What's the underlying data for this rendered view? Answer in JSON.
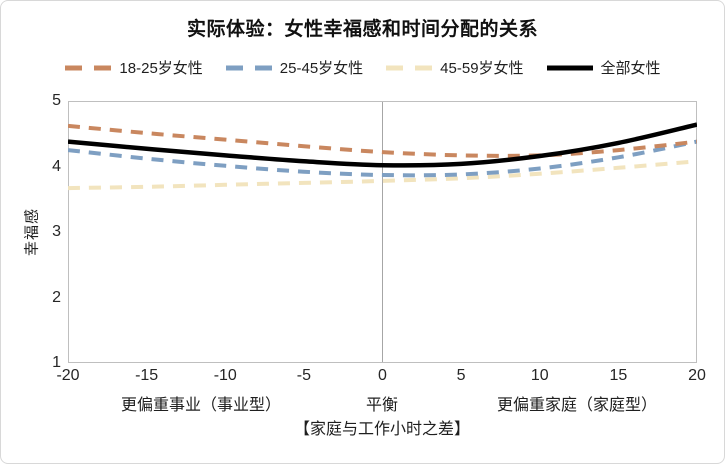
{
  "title": "实际体验：女性幸福感和时间分配的关系",
  "y_axis_title": "幸福感",
  "x_axis_title": "【家庭与工作小时之差】",
  "chart_data": {
    "type": "line",
    "title": "实际体验：女性幸福感和时间分配的关系",
    "xlabel": "【家庭与工作小时之差】",
    "ylabel": "幸福感",
    "xlim": [
      -20,
      20
    ],
    "ylim": [
      1,
      5
    ],
    "xticks": [
      -20,
      -15,
      -10,
      -5,
      0,
      5,
      10,
      15,
      20
    ],
    "yticks": [
      1,
      2,
      3,
      4,
      5
    ],
    "x": [
      -20,
      -15,
      -10,
      -5,
      0,
      5,
      10,
      15,
      20
    ],
    "series": [
      {
        "name": "18-25岁女性",
        "color": "#C9875F",
        "dash": true,
        "values": [
          4.62,
          4.51,
          4.41,
          4.31,
          4.22,
          4.17,
          4.17,
          4.25,
          4.38
        ]
      },
      {
        "name": "25-45岁女性",
        "color": "#7E9FC2",
        "dash": true,
        "values": [
          4.25,
          4.12,
          4.01,
          3.92,
          3.87,
          3.88,
          3.97,
          4.14,
          4.38
        ]
      },
      {
        "name": "45-59岁女性",
        "color": "#F2E4BE",
        "dash": true,
        "values": [
          3.67,
          3.69,
          3.72,
          3.75,
          3.78,
          3.82,
          3.89,
          3.98,
          4.08
        ]
      },
      {
        "name": "全部女性",
        "color": "#000000",
        "dash": false,
        "values": [
          4.38,
          4.27,
          4.17,
          4.08,
          4.02,
          4.04,
          4.16,
          4.36,
          4.64
        ]
      }
    ],
    "draw_order": [
      2,
      1,
      0,
      3
    ],
    "legend_position": "top",
    "grid": "single vertical gridline at x=0",
    "x_zone_labels": [
      "更偏重事业（事业型）",
      "平衡",
      "更偏重家庭（家庭型）"
    ],
    "colors": {
      "plot_border": "#BFBFBF",
      "center_gridline": "#A6A6A6",
      "text": "#1F1F1F"
    }
  }
}
